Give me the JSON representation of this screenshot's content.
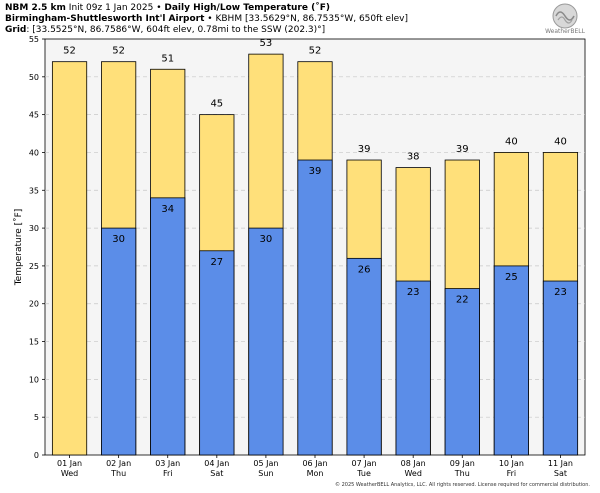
{
  "header": {
    "product": "NBM 2.5 km",
    "init": "Init 09z 1 Jan 2025",
    "bullet": "•",
    "title": "Daily High/Low Temperature (˚F)",
    "station_name": "Birmingham-Shuttlesworth Int'l Airport",
    "station_info": "KBHM [33.5629°N, 86.7535°W, 650ft elev]",
    "grid_label": "Grid",
    "grid_info": ": [33.5525°N, 86.7586°W, 604ft elev, 0.78mi to the SSW (202.3)°]"
  },
  "logo": {
    "text": "WeatherBELL"
  },
  "footer": "© 2025 WeatherBELL Analytics, LLC. All rights reserved. License required for commercial distribution.",
  "colors": {
    "high": "#FFE07A",
    "low": "#5B8DE8",
    "plot_bg": "#F5F5F5",
    "grid": "#C8C8C8"
  },
  "chart_data": {
    "type": "bar",
    "ylabel": "Temperature [˚F]",
    "ylim": [
      0,
      55
    ],
    "yticks": [
      0,
      5,
      10,
      15,
      20,
      25,
      30,
      35,
      40,
      45,
      50,
      55
    ],
    "grid": true,
    "categories": [
      "01 Jan",
      "02 Jan",
      "03 Jan",
      "04 Jan",
      "05 Jan",
      "06 Jan",
      "07 Jan",
      "08 Jan",
      "09 Jan",
      "10 Jan",
      "11 Jan"
    ],
    "weekdays": [
      "Wed",
      "Thu",
      "Fri",
      "Sat",
      "Sun",
      "Mon",
      "Tue",
      "Wed",
      "Thu",
      "Fri",
      "Sat"
    ],
    "series": [
      {
        "values": [
          52,
          52,
          51,
          45,
          53,
          52,
          39,
          38,
          39,
          40,
          40
        ]
      },
      {
        "values": [
          null,
          30,
          34,
          27,
          30,
          39,
          26,
          23,
          22,
          25,
          23
        ]
      }
    ]
  }
}
